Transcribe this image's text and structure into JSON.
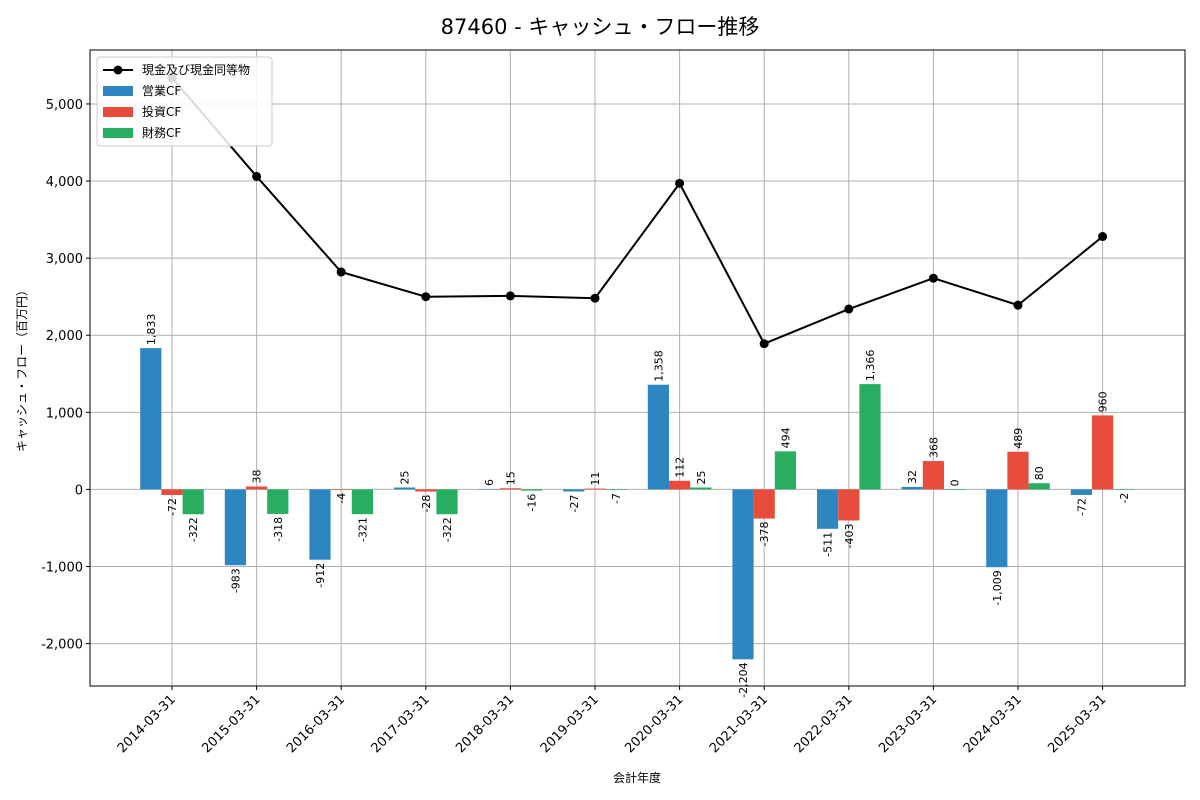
{
  "chart_data": {
    "type": "bar",
    "title": "87460 - キャッシュ・フロー推移",
    "xlabel": "会計年度",
    "ylabel": "キャッシュ・フロー（百万円）",
    "ylim": [
      -2550,
      5700
    ],
    "yticks": [
      -2000,
      -1000,
      0,
      1000,
      2000,
      3000,
      4000,
      5000
    ],
    "ytick_labels": [
      "-2,000",
      "-1,000",
      "0",
      "1,000",
      "2,000",
      "3,000",
      "4,000",
      "5,000"
    ],
    "grid": true,
    "legend_position": "top-left",
    "categories": [
      "2014-03-31",
      "2015-03-31",
      "2016-03-31",
      "2017-03-31",
      "2018-03-31",
      "2019-03-31",
      "2020-03-31",
      "2021-03-31",
      "2022-03-31",
      "2023-03-31",
      "2024-03-31",
      "2025-03-31"
    ],
    "series": [
      {
        "name": "営業CF",
        "color": "#2e86c1",
        "values": [
          1833,
          -983,
          -912,
          25,
          6,
          -27,
          1358,
          -2204,
          -511,
          32,
          -1009,
          -72
        ],
        "labels": [
          "1,833",
          "-983",
          "-912",
          "25",
          "6",
          "-27",
          "1,358",
          "-2,204",
          "-511",
          "32",
          "-1,009",
          "-72"
        ]
      },
      {
        "name": "投資CF",
        "color": "#e74c3c",
        "values": [
          -72,
          38,
          -4,
          -28,
          15,
          11,
          112,
          -378,
          -403,
          368,
          489,
          960
        ],
        "labels": [
          "-72",
          "38",
          "-4",
          "-28",
          "15",
          "11",
          "112",
          "-378",
          "-403",
          "368",
          "489",
          "960"
        ]
      },
      {
        "name": "財務CF",
        "color": "#27ae60",
        "values": [
          -322,
          -318,
          -321,
          -322,
          -16,
          -7,
          25,
          494,
          1366,
          0,
          80,
          -2
        ],
        "labels": [
          "-322",
          "-318",
          "-321",
          "-322",
          "-16",
          "-7",
          "25",
          "494",
          "1,366",
          "0",
          "80",
          "-2"
        ]
      }
    ],
    "line": {
      "name": "現金及び現金同等物",
      "color": "#000000",
      "values": [
        5340,
        4060,
        2820,
        2500,
        2510,
        2480,
        3970,
        1890,
        2340,
        2740,
        2390,
        3280
      ]
    }
  }
}
